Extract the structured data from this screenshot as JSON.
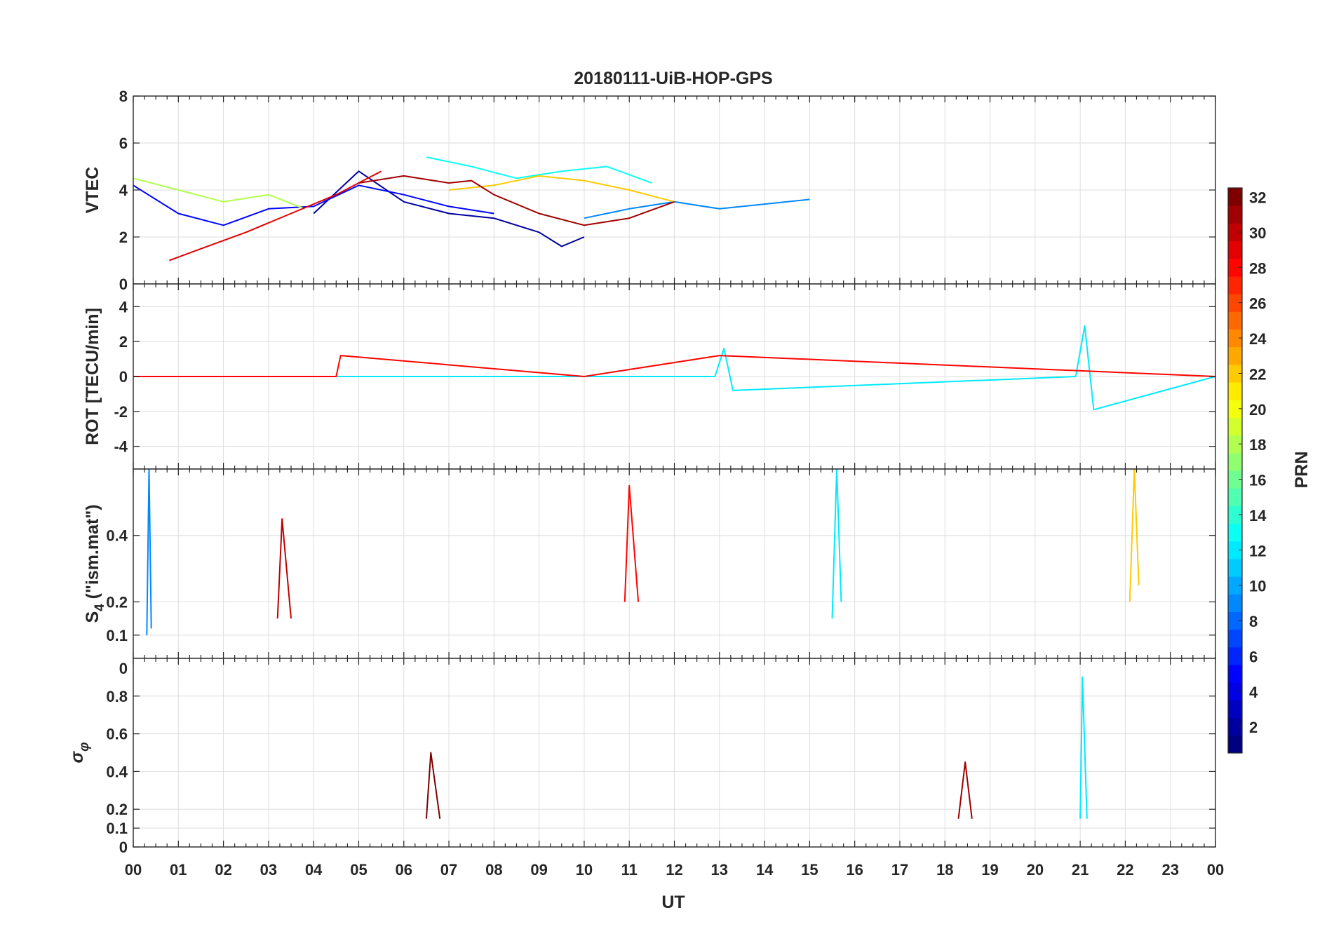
{
  "chart_data": {
    "type": "line",
    "title": "20180111-UiB-HOP-GPS",
    "xlabel": "UT",
    "xlim": [
      0,
      24
    ],
    "x_tick_labels": [
      "00",
      "01",
      "02",
      "03",
      "04",
      "05",
      "06",
      "07",
      "08",
      "09",
      "10",
      "11",
      "12",
      "13",
      "14",
      "15",
      "16",
      "17",
      "18",
      "19",
      "20",
      "21",
      "22",
      "23",
      "00"
    ],
    "grid": true,
    "colorbar": {
      "label": "PRN",
      "range": [
        1,
        32
      ],
      "colormap": "jet",
      "tick_labels": [
        "2",
        "4",
        "6",
        "8",
        "10",
        "12",
        "14",
        "16",
        "18",
        "20",
        "22",
        "24",
        "26",
        "28",
        "30",
        "32"
      ]
    },
    "panels": [
      {
        "id": "vtec",
        "ylabel": "VTEC",
        "ylim": [
          0,
          8
        ],
        "y_ticks": [
          0,
          2,
          4,
          6,
          8
        ],
        "y_tick_labels": [
          "0",
          "2",
          "4",
          "6",
          "8"
        ],
        "series": [
          {
            "prn": 2,
            "x": [
              4.0,
              5.0,
              6.0,
              7.0,
              8.0,
              9.0,
              9.5,
              10.0
            ],
            "y": [
              3.0,
              4.8,
              3.5,
              3.0,
              2.8,
              2.2,
              1.6,
              2.0
            ]
          },
          {
            "prn": 5,
            "x": [
              0.0,
              1.0,
              2.0,
              3.0,
              4.0,
              5.0,
              6.0,
              7.0,
              8.0
            ],
            "y": [
              4.2,
              3.0,
              2.5,
              3.2,
              3.3,
              4.2,
              3.8,
              3.3,
              3.0
            ]
          },
          {
            "prn": 9,
            "x": [
              10.0,
              11.0,
              12.0,
              13.0,
              14.0,
              15.0
            ],
            "y": [
              2.8,
              3.2,
              3.5,
              3.2,
              3.4,
              3.6
            ]
          },
          {
            "prn": 13,
            "x": [
              6.5,
              7.5,
              8.5,
              9.5,
              10.5,
              11.5
            ],
            "y": [
              5.4,
              5.0,
              4.5,
              4.8,
              5.0,
              4.3
            ]
          },
          {
            "prn": 18,
            "x": [
              0.0,
              1.0,
              2.0,
              3.0,
              3.8
            ],
            "y": [
              4.5,
              4.0,
              3.5,
              3.8,
              3.2
            ]
          },
          {
            "prn": 22,
            "x": [
              7.0,
              8.0,
              9.0,
              10.0,
              11.0,
              12.0
            ],
            "y": [
              4.0,
              4.2,
              4.6,
              4.4,
              4.0,
              3.5
            ]
          },
          {
            "prn": 29,
            "x": [
              0.8,
              1.5,
              2.5,
              3.5,
              4.5,
              5.5
            ],
            "y": [
              1.0,
              1.5,
              2.2,
              3.0,
              3.8,
              4.8
            ]
          },
          {
            "prn": 31,
            "x": [
              5.0,
              6.0,
              7.0,
              7.5,
              8.0,
              9.0,
              10.0,
              11.0,
              12.0
            ],
            "y": [
              4.3,
              4.6,
              4.3,
              4.4,
              3.8,
              3.0,
              2.5,
              2.8,
              3.5
            ]
          }
        ]
      },
      {
        "id": "rot",
        "ylabel": "ROT [TECU/min]",
        "ylim": [
          -5.3,
          5.3
        ],
        "y_ticks": [
          -4,
          -2,
          0,
          2,
          4
        ],
        "y_tick_labels": [
          "-4",
          "-2",
          "0",
          "2",
          "4"
        ],
        "series": [
          {
            "prn": 12,
            "x": [
              0.0,
              12.9,
              13.1,
              13.3,
              20.9,
              21.1,
              21.3,
              24.0
            ],
            "y": [
              0.0,
              0.0,
              1.6,
              -0.8,
              0.0,
              2.9,
              -1.9,
              0.0
            ]
          },
          {
            "prn": 28,
            "x": [
              0.0,
              4.5,
              4.6,
              10.0,
              13.0,
              24.0
            ],
            "y": [
              0.0,
              0.0,
              1.2,
              0.0,
              1.2,
              0.0
            ]
          }
        ]
      },
      {
        "id": "s4",
        "ylabel": "S4 (\"ism.mat\")",
        "ylabel_main": "S",
        "ylabel_sub": "4",
        "ylabel_rest": " (\"ism.mat\")",
        "ylim": [
          0.03,
          0.6
        ],
        "y_ticks": [
          0,
          0.1,
          0.2,
          0.4
        ],
        "y_tick_labels": [
          "0",
          "0.1",
          "0.2",
          "0.4"
        ],
        "series": [
          {
            "prn": 9,
            "x": [
              0.3,
              0.35,
              0.4
            ],
            "y": [
              0.1,
              0.6,
              0.12
            ]
          },
          {
            "prn": 12,
            "x": [
              15.5,
              15.6,
              15.7
            ],
            "y": [
              0.15,
              0.6,
              0.2
            ]
          },
          {
            "prn": 28,
            "x": [
              10.9,
              11.0,
              11.2
            ],
            "y": [
              0.2,
              0.55,
              0.2
            ]
          },
          {
            "prn": 22,
            "x": [
              22.1,
              22.2,
              22.3
            ],
            "y": [
              0.2,
              0.6,
              0.25
            ]
          },
          {
            "prn": 30,
            "x": [
              3.2,
              3.3,
              3.5
            ],
            "y": [
              0.15,
              0.45,
              0.15
            ]
          }
        ]
      },
      {
        "id": "sigma_phi",
        "ylabel": "σφ",
        "ylabel_main": "σ",
        "ylabel_sub": "φ",
        "ylim": [
          0,
          1.0
        ],
        "y_ticks": [
          0,
          0.1,
          0.2,
          0.4,
          0.6,
          0.8
        ],
        "y_tick_labels": [
          "0",
          "0.1",
          "0.2",
          "0.4",
          "0.6",
          "0.8"
        ],
        "series": [
          {
            "prn": 12,
            "x": [
              21.0,
              21.05,
              21.15
            ],
            "y": [
              0.15,
              0.9,
              0.15
            ]
          },
          {
            "prn": 32,
            "x": [
              6.5,
              6.6,
              6.8
            ],
            "y": [
              0.15,
              0.5,
              0.15
            ]
          },
          {
            "prn": 31,
            "x": [
              18.3,
              18.45,
              18.6
            ],
            "y": [
              0.15,
              0.45,
              0.15
            ]
          }
        ]
      }
    ]
  }
}
